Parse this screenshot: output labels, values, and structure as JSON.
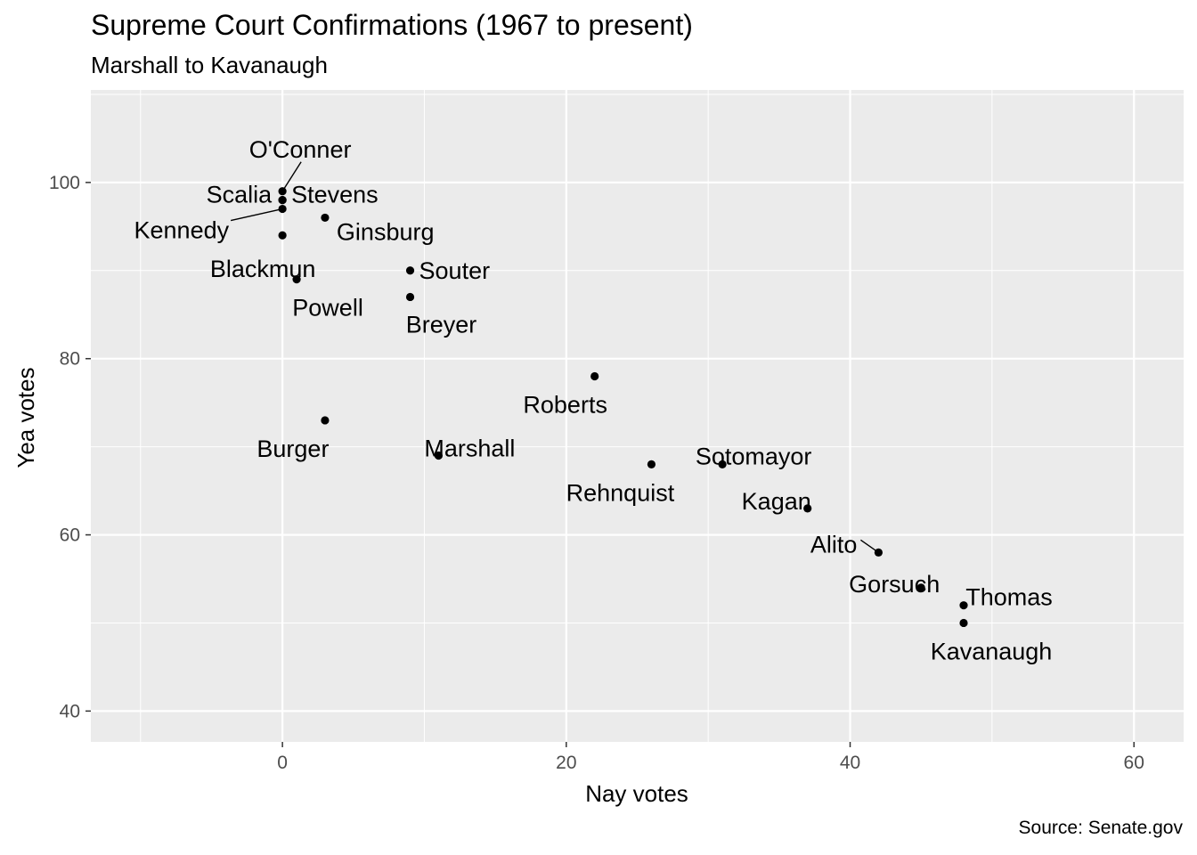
{
  "chart_data": {
    "type": "scatter",
    "title": "Supreme Court Confirmations (1967 to present)",
    "subtitle": "Marshall to Kavanaugh",
    "caption": "Source: Senate.gov",
    "xlabel": "Nay votes",
    "ylabel": "Yea votes",
    "xlim": [
      -13.5,
      63.5
    ],
    "ylim": [
      36.5,
      110.5
    ],
    "x_ticks": [
      0,
      20,
      40,
      60
    ],
    "y_ticks": [
      40,
      60,
      80,
      100
    ],
    "grid": true,
    "colors": {
      "panel": "#ebebeb",
      "grid": "#ffffff",
      "point": "#000000",
      "tick_text": "#4d4d4d"
    },
    "points": [
      {
        "name": "O'Conner",
        "nay": 0,
        "yea": 99
      },
      {
        "name": "Scalia",
        "nay": 0,
        "yea": 98
      },
      {
        "name": "Stevens",
        "nay": 0,
        "yea": 98
      },
      {
        "name": "Kennedy",
        "nay": 0,
        "yea": 97
      },
      {
        "name": "Blackmun",
        "nay": 0,
        "yea": 94
      },
      {
        "name": "Ginsburg",
        "nay": 3,
        "yea": 96
      },
      {
        "name": "Powell",
        "nay": 1,
        "yea": 89
      },
      {
        "name": "Souter",
        "nay": 9,
        "yea": 90
      },
      {
        "name": "Breyer",
        "nay": 9,
        "yea": 87
      },
      {
        "name": "Burger",
        "nay": 3,
        "yea": 73
      },
      {
        "name": "Marshall",
        "nay": 11,
        "yea": 69
      },
      {
        "name": "Roberts",
        "nay": 22,
        "yea": 78
      },
      {
        "name": "Rehnquist",
        "nay": 26,
        "yea": 68
      },
      {
        "name": "Sotomayor",
        "nay": 31,
        "yea": 68
      },
      {
        "name": "Kagan",
        "nay": 37,
        "yea": 63
      },
      {
        "name": "Alito",
        "nay": 42,
        "yea": 58
      },
      {
        "name": "Gorsuch",
        "nay": 45,
        "yea": 54
      },
      {
        "name": "Thomas",
        "nay": 48,
        "yea": 52
      },
      {
        "name": "Kavanaugh",
        "nay": 48,
        "yea": 50
      }
    ]
  }
}
